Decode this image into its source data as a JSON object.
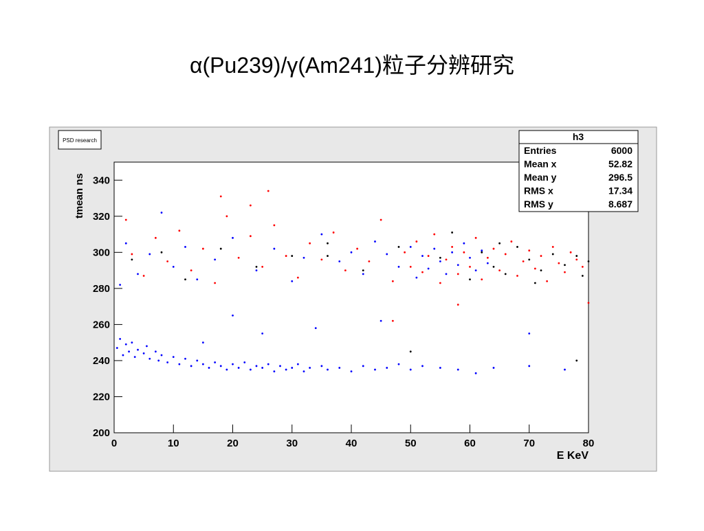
{
  "chart_data": {
    "type": "scatter",
    "title": "α(Pu239)/γ(Am241)粒子分辨研究",
    "annotation": "PSD research",
    "x_label": "E KeV",
    "y_label": "tmean ns",
    "xlim": [
      0,
      80
    ],
    "xticks": [
      0,
      10,
      20,
      30,
      40,
      50,
      60,
      70,
      80
    ],
    "ylim": [
      200,
      350
    ],
    "yticks": [
      200,
      220,
      240,
      260,
      280,
      300,
      320,
      340
    ],
    "stats_box": {
      "title": "h3",
      "rows": [
        [
          "Entries",
          6000
        ],
        [
          "Mean x",
          52.82
        ],
        [
          "Mean y",
          296.5
        ],
        [
          "RMS x",
          17.34
        ],
        [
          "RMS y",
          8.687
        ]
      ]
    },
    "series": [
      {
        "color": "#0000ff",
        "x": [
          0.5,
          1,
          1.5,
          2,
          2.5,
          3,
          3.5,
          4,
          5,
          5.5,
          6,
          7,
          7.5,
          8,
          9,
          10,
          11,
          12,
          13,
          14,
          15,
          16,
          17,
          18,
          19,
          20,
          21,
          22,
          23,
          24,
          25,
          26,
          27,
          28,
          29,
          30,
          31,
          32,
          33,
          35,
          36,
          38,
          40,
          42,
          44,
          46,
          48,
          50,
          52,
          55,
          58,
          61,
          64,
          70,
          76,
          52,
          53,
          54,
          55,
          56,
          57,
          58,
          59,
          60,
          61,
          62,
          63,
          51,
          50,
          48,
          46,
          44,
          42,
          40,
          38,
          35,
          32,
          30,
          27,
          24,
          20,
          17,
          14,
          12,
          10,
          8,
          6,
          4,
          2,
          1,
          20,
          25,
          34,
          45,
          70,
          15
        ],
        "values": [
          247,
          252,
          243,
          249,
          245,
          250,
          242,
          246,
          244,
          248,
          241,
          245,
          240,
          243,
          239,
          242,
          238,
          241,
          237,
          240,
          238,
          236,
          239,
          237,
          235,
          238,
          236,
          239,
          235,
          237,
          236,
          238,
          234,
          237,
          235,
          236,
          238,
          234,
          236,
          237,
          235,
          236,
          234,
          237,
          235,
          236,
          238,
          235,
          237,
          236,
          235,
          233,
          236,
          237,
          235,
          298,
          291,
          302,
          295,
          288,
          300,
          293,
          305,
          297,
          290,
          301,
          294,
          286,
          303,
          292,
          299,
          306,
          288,
          300,
          295,
          310,
          297,
          284,
          302,
          290,
          308,
          296,
          285,
          303,
          292,
          322,
          299,
          288,
          305,
          282,
          265,
          255,
          258,
          262,
          255,
          250
        ]
      },
      {
        "color": "#ff0000",
        "x": [
          2,
          3,
          5,
          7,
          9,
          11,
          13,
          15,
          17,
          19,
          21,
          23,
          25,
          27,
          29,
          31,
          33,
          35,
          37,
          39,
          41,
          43,
          45,
          47,
          49,
          50,
          51,
          52,
          53,
          54,
          55,
          56,
          57,
          58,
          59,
          60,
          61,
          62,
          63,
          64,
          65,
          66,
          67,
          68,
          69,
          70,
          71,
          72,
          73,
          74,
          75,
          76,
          77,
          78,
          79,
          18,
          26,
          23,
          58,
          80,
          47
        ],
        "values": [
          318,
          299,
          287,
          308,
          295,
          312,
          290,
          302,
          283,
          320,
          297,
          309,
          292,
          315,
          298,
          286,
          305,
          296,
          311,
          290,
          302,
          295,
          318,
          284,
          300,
          292,
          306,
          289,
          298,
          310,
          283,
          296,
          303,
          288,
          300,
          292,
          308,
          285,
          297,
          302,
          290,
          299,
          306,
          287,
          295,
          301,
          291,
          298,
          284,
          303,
          294,
          289,
          300,
          296,
          292,
          331,
          334,
          326,
          271,
          272,
          262
        ]
      },
      {
        "color": "#000000",
        "x": [
          3,
          8,
          12,
          18,
          24,
          30,
          36,
          42,
          48,
          55,
          60,
          62,
          64,
          66,
          68,
          70,
          72,
          74,
          76,
          78,
          79,
          80,
          71,
          65,
          57,
          36,
          50,
          78
        ],
        "values": [
          296,
          300,
          285,
          302,
          292,
          298,
          305,
          290,
          303,
          297,
          285,
          300,
          292,
          288,
          303,
          296,
          290,
          299,
          293,
          298,
          287,
          295,
          283,
          305,
          311,
          298,
          245,
          240
        ]
      }
    ]
  }
}
